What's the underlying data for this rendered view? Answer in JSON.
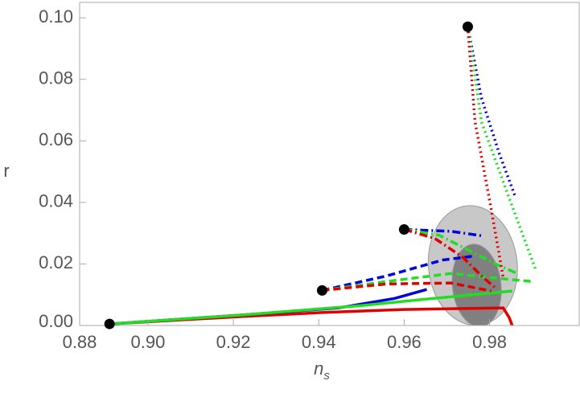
{
  "chart_data": {
    "type": "line",
    "xlabel": {
      "text": "n",
      "subscript": "s"
    },
    "ylabel": "r",
    "xlim": [
      0.884,
      1.001
    ],
    "ylim": [
      0,
      0.105
    ],
    "xticks": [
      0.88,
      {
        "value": 0.9,
        "label": "0.90"
      },
      0.92,
      0.94,
      0.96,
      0.98
    ],
    "yticks": [
      {
        "value": 0,
        "label": "0.00"
      },
      0.02,
      0.04,
      0.06,
      0.08,
      {
        "value": 0.1,
        "label": "0.10"
      }
    ],
    "regions": [
      {
        "color": "#c8c8c8",
        "cx": 0.9761,
        "cy": 0.0195,
        "rx": 0.0104,
        "ry": 0.0195
      },
      {
        "color": "#808080",
        "cx": 0.977,
        "cy": 0.013,
        "rx": 0.0057,
        "ry": 0.0135
      }
    ],
    "series": [
      {
        "color": "#e00000",
        "style": "solid",
        "x": [
          0.891,
          0.9219,
          0.9408,
          0.9597,
          0.9832,
          0.9846,
          0.9853
        ],
        "y": [
          0.0005,
          0.0029,
          0.0042,
          0.0052,
          0.0057,
          0.0026,
          0
        ]
      },
      {
        "color": "#0000dd",
        "style": "solid",
        "x": [
          0.891,
          0.9219,
          0.9446,
          0.9578,
          0.9653
        ],
        "y": [
          0.0005,
          0.0034,
          0.0057,
          0.0088,
          0.0117
        ]
      },
      {
        "color": "#22dd22",
        "style": "solid",
        "x": [
          0.891,
          0.9219,
          0.9502,
          0.9653,
          0.9853
        ],
        "y": [
          0.0005,
          0.0034,
          0.0065,
          0.0086,
          0.0112
        ]
      },
      {
        "color": "#0000dd",
        "style": "dashed",
        "x": [
          0.9408,
          0.9559,
          0.9691,
          0.9766
        ],
        "y": [
          0.0114,
          0.0161,
          0.0213,
          0.0226
        ]
      },
      {
        "color": "#22dd22",
        "style": "dashed",
        "x": [
          0.9408,
          0.9559,
          0.971,
          0.9823,
          0.9898
        ],
        "y": [
          0.0114,
          0.0143,
          0.0169,
          0.0153,
          0.0143
        ]
      },
      {
        "color": "#e00000",
        "style": "dashed",
        "x": [
          0.9408,
          0.9559,
          0.971,
          0.9804
        ],
        "y": [
          0.0114,
          0.0135,
          0.0138,
          0.0112
        ]
      },
      {
        "color": "#0000dd",
        "style": "dashdot",
        "x": [
          0.96,
          0.971,
          0.9785
        ],
        "y": [
          0.0312,
          0.0306,
          0.0291
        ]
      },
      {
        "color": "#22dd22",
        "style": "dashdot",
        "x": [
          0.96,
          0.9681,
          0.9748,
          0.9814,
          0.9865
        ],
        "y": [
          0.0312,
          0.0294,
          0.0247,
          0.02,
          0.0169
        ]
      },
      {
        "color": "#e00000",
        "style": "dashdot",
        "x": [
          0.96,
          0.9672,
          0.9738,
          0.9785,
          0.9814
        ],
        "y": [
          0.0312,
          0.0283,
          0.0221,
          0.0156,
          0.0122
        ]
      },
      {
        "color": "#0000dd",
        "style": "dotted",
        "x": [
          0.9749,
          0.9781,
          0.9823,
          0.9861
        ],
        "y": [
          0.0971,
          0.074,
          0.0558,
          0.0416
        ]
      },
      {
        "color": "#22dd22",
        "style": "dotted",
        "x": [
          0.9749,
          0.9781,
          0.9842,
          0.9908
        ],
        "y": [
          0.0971,
          0.0662,
          0.0429,
          0.0182
        ]
      },
      {
        "color": "#e00000",
        "style": "dotted",
        "x": [
          0.9749,
          0.9766,
          0.9804,
          0.9832
        ],
        "y": [
          0.0971,
          0.0662,
          0.0377,
          0.0156
        ]
      }
    ],
    "markers": {
      "color": "#000000",
      "x": [
        0.891,
        0.9408,
        0.96,
        0.9749
      ],
      "y": [
        0.0005,
        0.0114,
        0.0312,
        0.0971
      ]
    }
  }
}
